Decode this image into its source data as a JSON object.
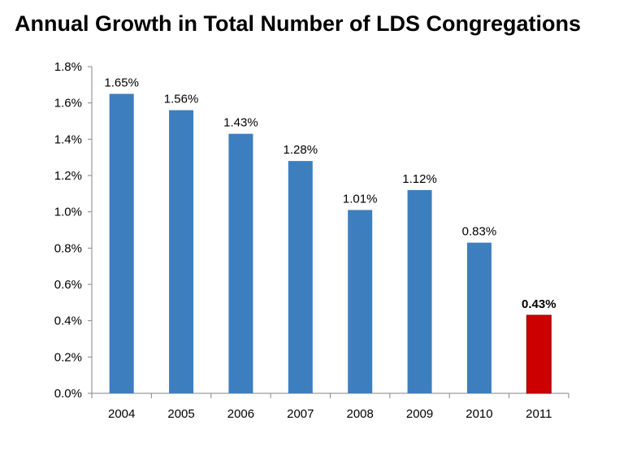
{
  "chart_data": {
    "type": "bar",
    "title": "Annual Growth in Total Number of LDS Congregations",
    "xlabel": "",
    "ylabel": "",
    "categories": [
      "2004",
      "2005",
      "2006",
      "2007",
      "2008",
      "2009",
      "2010",
      "2011"
    ],
    "values": [
      1.65,
      1.56,
      1.43,
      1.28,
      1.01,
      1.12,
      0.83,
      0.43
    ],
    "data_labels": [
      "1.65%",
      "1.56%",
      "1.43%",
      "1.28%",
      "1.01%",
      "1.12%",
      "0.83%",
      "0.43%"
    ],
    "ylim": [
      0,
      1.8
    ],
    "yticks": [
      0,
      0.2,
      0.4,
      0.6,
      0.8,
      1.0,
      1.2,
      1.4,
      1.6,
      1.8
    ],
    "ytick_labels": [
      "0.0%",
      "0.2%",
      "0.4%",
      "0.6%",
      "0.8%",
      "1.0%",
      "1.2%",
      "1.4%",
      "1.6%",
      "1.8%"
    ],
    "grid": false,
    "legend": "none",
    "colors": {
      "bar": "#3d7ebf",
      "highlight_bar": "#cc0000",
      "axis": "#868686"
    },
    "highlight": {
      "category": "2011",
      "label_bold": true
    }
  }
}
